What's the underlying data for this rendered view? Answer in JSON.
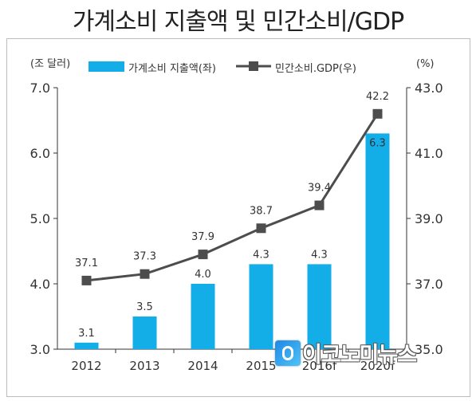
{
  "title": "가계소비 지출액 및 민간소비/GDP",
  "watermark": "이코노미뉴스",
  "chart_data": {
    "type": "bar+line",
    "categories": [
      "2012",
      "2013",
      "2014",
      "2015",
      "2016f",
      "2020f"
    ],
    "left_axis": {
      "unit_label": "(조 달러)",
      "ylim": [
        3.0,
        7.0
      ],
      "ticks": [
        "3.0",
        "4.0",
        "5.0",
        "6.0",
        "7.0"
      ]
    },
    "right_axis": {
      "unit_label": "(%)",
      "ylim": [
        35.0,
        43.0
      ],
      "ticks": [
        "35.0",
        "37.0",
        "39.0",
        "41.0",
        "43.0"
      ]
    },
    "series": [
      {
        "name": "가계소비 지출액(좌)",
        "type": "bar",
        "axis": "left",
        "color": "#13aee8",
        "values": [
          3.1,
          3.5,
          4.0,
          4.3,
          4.3,
          6.3
        ],
        "labels": [
          "3.1",
          "3.5",
          "4.0",
          "4.3",
          "4.3",
          "6.3"
        ]
      },
      {
        "name": "민간소비.GDP(우)",
        "type": "line",
        "axis": "right",
        "color": "#4d4d4d",
        "values": [
          37.1,
          37.3,
          37.9,
          38.7,
          39.4,
          42.2
        ],
        "labels": [
          "37.1",
          "37.3",
          "37.9",
          "38.7",
          "39.4",
          "42.2"
        ]
      }
    ],
    "legend": "top",
    "grid": false
  }
}
